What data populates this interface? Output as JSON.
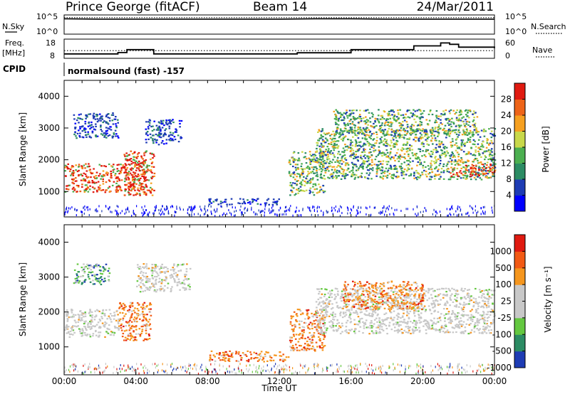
{
  "header": {
    "station": "Prince George (fitACF)",
    "beam": "Beam 14",
    "date": "24/Mar/2011"
  },
  "noise_panel": {
    "left_label": "N.Sky",
    "left_ticks": [
      "10^5",
      "10^0"
    ],
    "right_label": "N.Search",
    "right_ticks": [
      "10^5",
      "10^0"
    ]
  },
  "freq_panel": {
    "left_label_1": "Freq.",
    "left_label_2": "[MHz]",
    "left_ticks": [
      "18",
      "8"
    ],
    "right_label": "Nave",
    "right_ticks": [
      "60",
      "0"
    ]
  },
  "cpid_panel": {
    "label": "CPID",
    "value": "normalsound (fast) -157"
  },
  "colors": {
    "power_scale": [
      "#0000ff",
      "#1e3cb4",
      "#2c8c64",
      "#4caf50",
      "#c8d84a",
      "#f6a020",
      "#ee6418",
      "#e01a10"
    ],
    "velocity_scale": [
      "#e01a10",
      "#f25a14",
      "#f5961e",
      "#c8c8c8",
      "#c8c8c8",
      "#64c840",
      "#2c8c64",
      "#1e3cb4"
    ]
  },
  "chart_data": [
    {
      "type": "line",
      "title": "",
      "x": [
        "00:00",
        "02:00",
        "04:00",
        "06:00",
        "08:00",
        "10:00",
        "12:00",
        "14:00",
        "16:00",
        "18:00",
        "20:00",
        "22:00",
        "24:00"
      ],
      "series": [
        {
          "values": [
            4.0,
            3.9,
            3.9,
            3.9,
            3.9,
            3.9,
            3.9,
            4.0,
            4.0,
            3.9,
            3.9,
            3.9,
            3.9
          ]
        },
        {
          "values": [
            4.3,
            4.3,
            4.3,
            4.3,
            4.3,
            4.3,
            4.3,
            4.3,
            4.3,
            4.3,
            4.3,
            4.3,
            4.3
          ]
        }
      ],
      "ylim_log10": [
        0,
        5
      ]
    },
    {
      "type": "line",
      "title": "",
      "x": [
        "00:00",
        "00:30",
        "03:00",
        "03:30",
        "05:00",
        "08:00",
        "11:00",
        "13:00",
        "16:00",
        "19:30",
        "21:00",
        "21:30",
        "22:00",
        "24:00"
      ],
      "series": [
        {
          "values": [
            10.3,
            10.3,
            11.0,
            12.5,
            10.3,
            10.3,
            10.3,
            10.9,
            12.5,
            14.5,
            16.0,
            15.3,
            13.8,
            13.3
          ]
        },
        {
          "values": [
            12,
            12,
            12,
            12,
            12,
            12,
            12,
            12,
            12,
            12,
            12,
            12,
            12,
            12
          ]
        }
      ],
      "ylim": [
        8,
        18
      ]
    },
    {
      "type": "heatmap",
      "title": "",
      "ylabel": "Slant Range [km]",
      "yticks": [
        "1000",
        "2000",
        "3000",
        "4000"
      ],
      "ylim": [
        200,
        4500
      ],
      "xlim_hours": [
        0,
        24
      ],
      "colorbar_label": "Power [dB]",
      "colorbar_ticks": [
        "4",
        "8",
        "12",
        "16",
        "20",
        "24",
        "28"
      ],
      "echo_regions": [
        {
          "t0": 0.0,
          "t1": 4.5,
          "r0": 1000,
          "r1": 1900,
          "level": "high"
        },
        {
          "t0": 3.3,
          "t1": 5.0,
          "r0": 900,
          "r1": 2300,
          "level": "high"
        },
        {
          "t0": 0.5,
          "t1": 3.0,
          "r0": 2700,
          "r1": 3500,
          "level": "low"
        },
        {
          "t0": 4.5,
          "t1": 6.5,
          "r0": 2500,
          "r1": 3300,
          "level": "low"
        },
        {
          "t0": 8.0,
          "t1": 12.0,
          "r0": 600,
          "r1": 800,
          "level": "low"
        },
        {
          "t0": 12.5,
          "t1": 14.5,
          "r0": 900,
          "r1": 2300,
          "level": "mid"
        },
        {
          "t0": 14.0,
          "t1": 24.0,
          "r0": 1400,
          "r1": 3000,
          "level": "mid"
        },
        {
          "t0": 21.5,
          "t1": 24.0,
          "r0": 1500,
          "r1": 1900,
          "level": "high"
        },
        {
          "t0": 15.0,
          "t1": 23.0,
          "r0": 2800,
          "r1": 3600,
          "level": "mid"
        }
      ]
    },
    {
      "type": "heatmap",
      "title": "",
      "xlabel": "Time UT",
      "ylabel": "Slant Range [km]",
      "xticks": [
        "00:00",
        "04:00",
        "08:00",
        "12:00",
        "16:00",
        "20:00",
        "00:00"
      ],
      "yticks": [
        "1000",
        "2000",
        "3000",
        "4000"
      ],
      "ylim": [
        200,
        4500
      ],
      "xlim_hours": [
        0,
        24
      ],
      "colorbar_label": "Velocity [m s⁻¹]",
      "colorbar_ticks": [
        "1000",
        "500",
        "100",
        "25",
        "-25",
        "-100",
        "-500",
        "-1000"
      ],
      "echo_regions": [
        {
          "t0": 0.0,
          "t1": 3.0,
          "r0": 1300,
          "r1": 2100,
          "level": "ground"
        },
        {
          "t0": 3.0,
          "t1": 4.8,
          "r0": 1200,
          "r1": 2300,
          "level": "away"
        },
        {
          "t0": 0.5,
          "t1": 2.5,
          "r0": 2800,
          "r1": 3400,
          "level": "mixed"
        },
        {
          "t0": 4.0,
          "t1": 7.0,
          "r0": 2600,
          "r1": 3400,
          "level": "ground"
        },
        {
          "t0": 8.0,
          "t1": 12.5,
          "r0": 600,
          "r1": 900,
          "level": "away"
        },
        {
          "t0": 12.5,
          "t1": 14.5,
          "r0": 900,
          "r1": 2100,
          "level": "away"
        },
        {
          "t0": 14.0,
          "t1": 24.0,
          "r0": 1400,
          "r1": 2700,
          "level": "ground"
        },
        {
          "t0": 15.5,
          "t1": 20.0,
          "r0": 2100,
          "r1": 2900,
          "level": "away"
        }
      ]
    }
  ]
}
